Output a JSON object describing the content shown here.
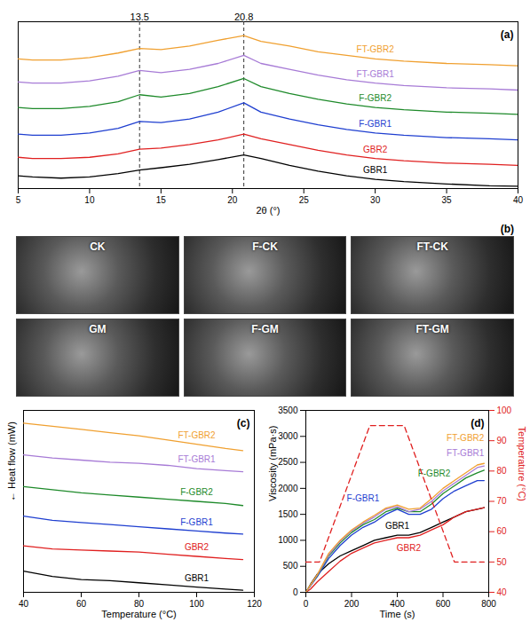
{
  "chart_data": [
    {
      "type": "line",
      "title": "(a)",
      "xlabel": "2θ (°)",
      "x": [
        5,
        6,
        8,
        10,
        12,
        13.5,
        15,
        17,
        19,
        20.8,
        22,
        24,
        26,
        28,
        30,
        32,
        35,
        38,
        40
      ],
      "xlim": [
        5,
        40
      ],
      "xticks": [
        5,
        10,
        15,
        20,
        25,
        30,
        35,
        40
      ],
      "ylim": [
        0,
        7.2
      ],
      "tick_labels": "x",
      "grid": false,
      "annotations": [
        {
          "x": 13.5,
          "text": "13.5"
        },
        {
          "x": 20.8,
          "text": "20.8"
        }
      ],
      "series": [
        {
          "name": "GBR1",
          "color": "#000000",
          "values": [
            0.55,
            0.5,
            0.45,
            0.5,
            0.65,
            0.8,
            0.9,
            1.05,
            1.25,
            1.45,
            1.3,
            1.0,
            0.75,
            0.55,
            0.4,
            0.3,
            0.2,
            0.12,
            0.1
          ]
        },
        {
          "name": "GBR2",
          "color": "#e02020",
          "values": [
            1.35,
            1.3,
            1.3,
            1.35,
            1.5,
            1.7,
            1.75,
            1.9,
            2.1,
            2.35,
            2.15,
            1.9,
            1.65,
            1.45,
            1.3,
            1.2,
            1.1,
            1.05,
            1.0
          ]
        },
        {
          "name": "F-GBR1",
          "color": "#1f3fd0",
          "values": [
            2.35,
            2.3,
            2.3,
            2.4,
            2.6,
            2.9,
            2.85,
            3.0,
            3.3,
            3.7,
            3.3,
            3.0,
            2.75,
            2.55,
            2.4,
            2.3,
            2.2,
            2.15,
            2.1
          ]
        },
        {
          "name": "F-GBR2",
          "color": "#1e8a2a",
          "values": [
            3.5,
            3.45,
            3.45,
            3.55,
            3.75,
            4.05,
            3.95,
            4.1,
            4.4,
            4.75,
            4.4,
            4.1,
            3.85,
            3.65,
            3.5,
            3.4,
            3.3,
            3.25,
            3.2
          ]
        },
        {
          "name": "FT-GBR1",
          "color": "#a77bd6",
          "values": [
            4.6,
            4.55,
            4.55,
            4.65,
            4.85,
            5.1,
            5.0,
            5.15,
            5.4,
            5.75,
            5.4,
            5.15,
            4.9,
            4.7,
            4.55,
            4.45,
            4.35,
            4.3,
            4.25
          ]
        },
        {
          "name": "FT-GBR2",
          "color": "#f0a030",
          "values": [
            5.6,
            5.55,
            5.55,
            5.65,
            5.85,
            6.05,
            6.0,
            6.15,
            6.4,
            6.6,
            6.35,
            6.15,
            5.9,
            5.75,
            5.6,
            5.5,
            5.4,
            5.35,
            5.3
          ]
        }
      ]
    },
    {
      "type": "line",
      "title": "(c)",
      "xlabel": "Temperature (°C)",
      "ylabel": "← Heat flow (mW)",
      "x": [
        40,
        50,
        60,
        70,
        80,
        90,
        100,
        110,
        116
      ],
      "xlim": [
        40,
        120
      ],
      "xticks": [
        40,
        60,
        80,
        100,
        120
      ],
      "ylim": [
        0,
        8.6
      ],
      "tick_labels": "x",
      "grid": false,
      "series": [
        {
          "name": "GBR1",
          "color": "#000000",
          "values": [
            1.0,
            0.75,
            0.6,
            0.55,
            0.45,
            0.35,
            0.25,
            0.15,
            0.1
          ]
        },
        {
          "name": "GBR2",
          "color": "#e02020",
          "values": [
            2.2,
            2.05,
            2.0,
            1.95,
            1.9,
            1.8,
            1.7,
            1.6,
            1.55
          ]
        },
        {
          "name": "F-GBR1",
          "color": "#1f3fd0",
          "values": [
            3.6,
            3.4,
            3.3,
            3.2,
            3.1,
            3.0,
            2.9,
            2.8,
            2.75
          ]
        },
        {
          "name": "F-GBR2",
          "color": "#1e8a2a",
          "values": [
            5.0,
            4.85,
            4.7,
            4.6,
            4.5,
            4.4,
            4.3,
            4.2,
            4.1
          ]
        },
        {
          "name": "FT-GBR1",
          "color": "#a77bd6",
          "values": [
            6.5,
            6.35,
            6.25,
            6.15,
            6.1,
            6.0,
            5.85,
            5.75,
            5.7
          ]
        },
        {
          "name": "FT-GBR2",
          "color": "#f0a030",
          "values": [
            8.0,
            7.85,
            7.7,
            7.55,
            7.4,
            7.2,
            7.0,
            6.8,
            6.7
          ]
        }
      ]
    },
    {
      "type": "line",
      "title": "(d)",
      "xlabel": "Time (s)",
      "ylabel": "Viscosity (mPa·s)",
      "y2label": "Temperature (°C)",
      "xlim": [
        0,
        800
      ],
      "xticks": [
        0,
        200,
        400,
        600,
        800
      ],
      "ylim": [
        0,
        3500
      ],
      "yticks": [
        0,
        500,
        1000,
        1500,
        2000,
        2500,
        3000,
        3500
      ],
      "y2lim": [
        40,
        100
      ],
      "y2ticks": [
        40,
        50,
        60,
        70,
        80,
        90,
        100
      ],
      "grid": false,
      "series": [
        {
          "name": "GBR1",
          "color": "#000000",
          "x": [
            0,
            20,
            50,
            100,
            150,
            200,
            250,
            300,
            350,
            400,
            450,
            500,
            550,
            600,
            650,
            700,
            750,
            780
          ],
          "values": [
            0,
            150,
            350,
            550,
            700,
            800,
            900,
            1000,
            1050,
            1100,
            1100,
            1150,
            1250,
            1350,
            1450,
            1550,
            1600,
            1630
          ]
        },
        {
          "name": "GBR2",
          "color": "#e02020",
          "x": [
            0,
            20,
            50,
            100,
            150,
            200,
            250,
            300,
            350,
            400,
            450,
            500,
            550,
            600,
            650,
            700,
            750,
            780
          ],
          "values": [
            0,
            60,
            200,
            400,
            600,
            750,
            850,
            950,
            1000,
            1050,
            1050,
            1100,
            1200,
            1300,
            1450,
            1550,
            1600,
            1630
          ]
        },
        {
          "name": "F-GBR1",
          "color": "#1f3fd0",
          "x": [
            0,
            20,
            50,
            100,
            150,
            200,
            250,
            300,
            350,
            400,
            450,
            500,
            550,
            600,
            650,
            700,
            750,
            780
          ],
          "values": [
            0,
            120,
            300,
            650,
            900,
            1100,
            1250,
            1350,
            1500,
            1600,
            1500,
            1500,
            1600,
            1800,
            1950,
            2050,
            2150,
            2150
          ]
        },
        {
          "name": "F-GBR2",
          "color": "#1e8a2a",
          "x": [
            0,
            20,
            50,
            100,
            150,
            200,
            250,
            300,
            350,
            400,
            450,
            500,
            550,
            600,
            650,
            700,
            750,
            780
          ],
          "values": [
            0,
            130,
            320,
            700,
            950,
            1150,
            1300,
            1400,
            1550,
            1620,
            1550,
            1550,
            1700,
            1900,
            2050,
            2200,
            2300,
            2350
          ]
        },
        {
          "name": "FT-GBR1",
          "color": "#a77bd6",
          "x": [
            0,
            20,
            50,
            100,
            150,
            200,
            250,
            300,
            350,
            400,
            450,
            500,
            550,
            600,
            650,
            700,
            750,
            780
          ],
          "values": [
            0,
            130,
            330,
            720,
            980,
            1180,
            1330,
            1450,
            1600,
            1650,
            1550,
            1600,
            1750,
            1950,
            2100,
            2250,
            2400,
            2430
          ]
        },
        {
          "name": "FT-GBR2",
          "color": "#f0a030",
          "x": [
            0,
            20,
            50,
            100,
            150,
            200,
            250,
            300,
            350,
            400,
            450,
            500,
            550,
            600,
            650,
            700,
            750,
            780
          ],
          "values": [
            0,
            140,
            340,
            750,
            1000,
            1200,
            1350,
            1480,
            1620,
            1680,
            1600,
            1620,
            1800,
            2000,
            2150,
            2300,
            2450,
            2480
          ]
        },
        {
          "color": "#e02020",
          "axis": "y2",
          "line_style": "dashed",
          "x": [
            0,
            60,
            280,
            430,
            650,
            780
          ],
          "values": [
            50,
            50,
            95,
            95,
            50,
            50
          ]
        }
      ]
    }
  ],
  "image_panel": {
    "title": "(b)",
    "images": [
      "CK",
      "F-CK",
      "FT-CK",
      "GM",
      "F-GM",
      "FT-GM"
    ]
  }
}
